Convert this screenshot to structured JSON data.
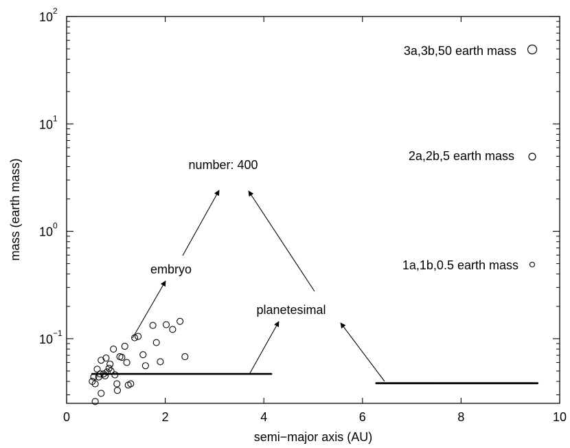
{
  "chart_data": {
    "type": "scatter",
    "title": "",
    "xlabel": "semi−major axis (AU)",
    "ylabel": "mass (earth mass)",
    "xlim": [
      0,
      10
    ],
    "ylim": [
      0.025,
      100
    ],
    "yscale": "log",
    "grid": false,
    "x_ticks": [
      {
        "value": 0,
        "label": "0"
      },
      {
        "value": 2,
        "label": "2"
      },
      {
        "value": 4,
        "label": "4"
      },
      {
        "value": 6,
        "label": "6"
      },
      {
        "value": 8,
        "label": "8"
      },
      {
        "value": 10,
        "label": "10"
      }
    ],
    "y_ticks": [
      {
        "value": 0.1,
        "base": "10",
        "exp": "−1"
      },
      {
        "value": 1,
        "base": "10",
        "exp": "0"
      },
      {
        "value": 10,
        "base": "10",
        "exp": "1"
      },
      {
        "value": 100,
        "base": "10",
        "exp": "2"
      }
    ],
    "series": [
      {
        "kind": "embryo",
        "marker": "open-circle",
        "points": [
          [
            0.52,
            0.04
          ],
          [
            0.55,
            0.044
          ],
          [
            0.58,
            0.038
          ],
          [
            0.62,
            0.052
          ],
          [
            0.65,
            0.044
          ],
          [
            0.68,
            0.047
          ],
          [
            0.7,
            0.063
          ],
          [
            0.75,
            0.047
          ],
          [
            0.78,
            0.045
          ],
          [
            0.8,
            0.066
          ],
          [
            0.82,
            0.049
          ],
          [
            0.86,
            0.053
          ],
          [
            0.9,
            0.05
          ],
          [
            0.95,
            0.08
          ],
          [
            0.98,
            0.046
          ],
          [
            1.02,
            0.038
          ],
          [
            1.03,
            0.033
          ],
          [
            1.08,
            0.068
          ],
          [
            1.12,
            0.067
          ],
          [
            1.18,
            0.085
          ],
          [
            1.22,
            0.06
          ],
          [
            1.25,
            0.037
          ],
          [
            1.3,
            0.038
          ],
          [
            1.38,
            0.102
          ],
          [
            1.45,
            0.105
          ],
          [
            1.55,
            0.071
          ],
          [
            1.6,
            0.056
          ],
          [
            1.75,
            0.133
          ],
          [
            1.82,
            0.092
          ],
          [
            1.9,
            0.061
          ],
          [
            2.02,
            0.135
          ],
          [
            2.15,
            0.122
          ],
          [
            2.3,
            0.145
          ],
          [
            2.4,
            0.068
          ],
          [
            0.58,
            0.026
          ],
          [
            0.7,
            0.031
          ],
          [
            0.88,
            0.058
          ]
        ]
      },
      {
        "kind": "planetesimal-inner",
        "marker": "dot",
        "x_start": 0.52,
        "x_end": 4.15,
        "y": 0.047,
        "count": 200
      },
      {
        "kind": "planetesimal-outer",
        "marker": "dot",
        "x_start": 6.28,
        "x_end": 9.55,
        "y": 0.0385,
        "count": 200
      }
    ],
    "legend": [
      {
        "label": "3a,3b,50 earth mass",
        "marker_size": "large"
      },
      {
        "label": "2a,2b,5 earth mass",
        "marker_size": "medium"
      },
      {
        "label": "1a,1b,0.5 earth mass",
        "marker_size": "small"
      }
    ],
    "annotations": [
      {
        "text": "number: 400"
      },
      {
        "text": "embryo"
      },
      {
        "text": "planetesimal"
      }
    ]
  }
}
